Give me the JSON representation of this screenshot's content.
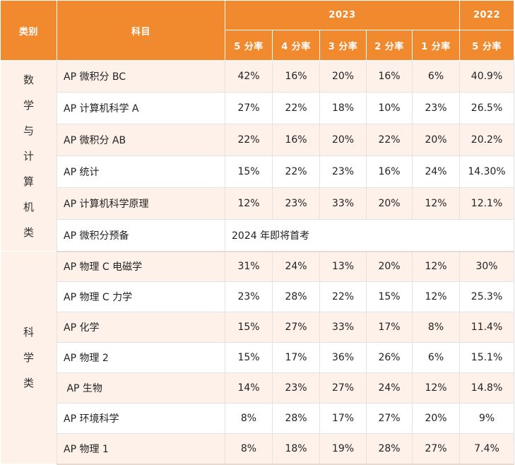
{
  "header": {
    "category": "类别",
    "subject": "科目",
    "year_2023": "2023",
    "year_2022": "2022",
    "rates_2023": [
      "5 分率",
      "4 分率",
      "3 分率",
      "2 分率",
      "1 分率"
    ],
    "rate_2022": "5 分率"
  },
  "groups": [
    {
      "category_chars": [
        "数",
        "学",
        "与",
        "计",
        "算",
        "机",
        "类"
      ],
      "rows": [
        {
          "subject": "AP 微积分 BC",
          "values": [
            "42%",
            "16%",
            "20%",
            "16%",
            "6%",
            "40.9%"
          ]
        },
        {
          "subject": "AP 计算机科学 A",
          "values": [
            "27%",
            "22%",
            "18%",
            "10%",
            "23%",
            "26.5%"
          ]
        },
        {
          "subject": "AP 微积分 AB",
          "values": [
            "22%",
            "16%",
            "20%",
            "22%",
            "20%",
            "20.2%"
          ]
        },
        {
          "subject": "AP 统计",
          "values": [
            "15%",
            "22%",
            "23%",
            "16%",
            "24%",
            "14.30%"
          ]
        },
        {
          "subject": "AP 计算机科学原理",
          "values": [
            "12%",
            "23%",
            "33%",
            "20%",
            "12%",
            "12.1%"
          ]
        },
        {
          "subject": "AP 微积分预备",
          "note": "2024 年即将首考"
        }
      ]
    },
    {
      "category_chars": [
        "科",
        "学",
        "类"
      ],
      "rows": [
        {
          "subject": "AP 物理 C 电磁学",
          "values": [
            "31%",
            "24%",
            "13%",
            "20%",
            "12%",
            "30%"
          ]
        },
        {
          "subject": "AP 物理 C 力学",
          "values": [
            "23%",
            "28%",
            "22%",
            "15%",
            "12%",
            "25.3%"
          ]
        },
        {
          "subject": "AP 化学",
          "values": [
            "15%",
            "27%",
            "33%",
            "17%",
            "8%",
            "11.4%"
          ]
        },
        {
          "subject": "AP 物理 2",
          "values": [
            "15%",
            "17%",
            "36%",
            "26%",
            "6%",
            "15.1%"
          ]
        },
        {
          "subject": " AP 生物",
          "values": [
            "14%",
            "23%",
            "27%",
            "24%",
            "12%",
            "14.8%"
          ]
        },
        {
          "subject": "AP 环境科学",
          "values": [
            "8%",
            "28%",
            "17%",
            "27%",
            "20%",
            "9%"
          ]
        },
        {
          "subject": "AP 物理 1",
          "values": [
            "8%",
            "18%",
            "19%",
            "28%",
            "27%",
            "7.4%"
          ]
        }
      ]
    }
  ]
}
